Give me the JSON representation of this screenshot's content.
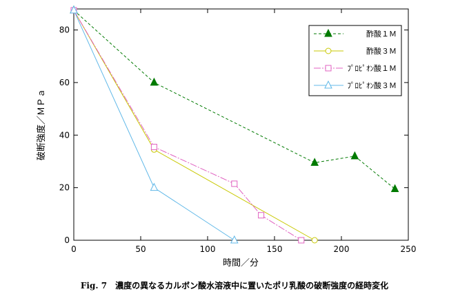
{
  "figure": {
    "label": "Fig. 7",
    "caption": "濃度の異なるカルボン酸水溶液中に置いたポリ乳酸の破断強度の経時変化"
  },
  "chart_data": {
    "type": "line",
    "xlabel": "時間／分",
    "ylabel": "破断強度／ＭＰａ",
    "xlim": [
      0,
      250
    ],
    "ylim": [
      0,
      88
    ],
    "xticks": [
      0,
      50,
      100,
      150,
      200,
      250
    ],
    "yticks": [
      0,
      20,
      40,
      60,
      80
    ],
    "grid": false,
    "legend_position": "top-right",
    "series": [
      {
        "name": "酢酸１Ｍ",
        "color": "#007a00",
        "dash": "4,3",
        "marker": "triangle-filled",
        "x": [
          0,
          60,
          180,
          210,
          240
        ],
        "y": [
          87.5,
          60,
          29.5,
          32,
          19.5
        ]
      },
      {
        "name": "酢酸３Ｍ",
        "color": "#c8c800",
        "dash": "",
        "marker": "circle-open",
        "x": [
          0,
          60,
          180
        ],
        "y": [
          87.5,
          34.5,
          0
        ]
      },
      {
        "name": "ﾌﾟﾛﾋﾟｵﾝ酸１Ｍ",
        "color": "#e060c0",
        "dash": "10,2,2,2",
        "marker": "square-open",
        "x": [
          0,
          60,
          120,
          140,
          170
        ],
        "y": [
          87.5,
          35.5,
          21.5,
          9.5,
          0
        ]
      },
      {
        "name": "ﾌﾟﾛﾋﾟｵﾝ酸３Ｍ",
        "color": "#60b8e8",
        "dash": "",
        "marker": "triangle-open",
        "x": [
          0,
          60,
          120
        ],
        "y": [
          87.5,
          20,
          0
        ]
      }
    ]
  }
}
